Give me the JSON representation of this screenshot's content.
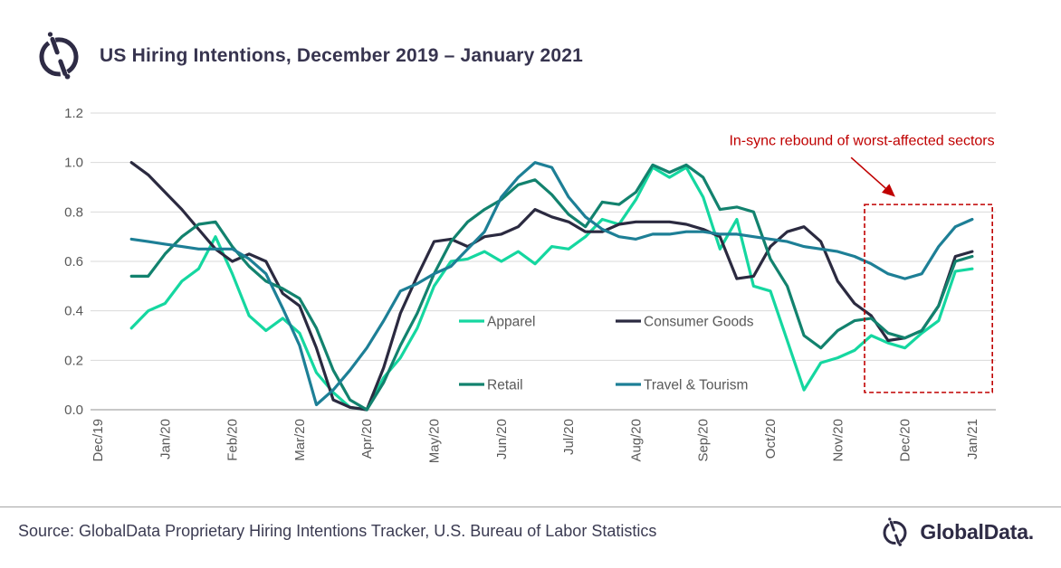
{
  "header": {
    "title": "US Hiring Intentions, December 2019 – January 2021"
  },
  "footer": {
    "source": "Source: GlobalData Proprietary Hiring Intentions Tracker, U.S. Bureau of Labor Statistics",
    "brand": "GlobalData."
  },
  "colors": {
    "title_text": "#37344F",
    "axis_text": "#595959",
    "gridline": "#D9D9D9",
    "axis_line": "#A6A6A6",
    "annotation_red": "#C00000",
    "logo_navy": "#2E2B45",
    "apparel": "#15D7A0",
    "consumer_goods": "#2B2A40",
    "retail": "#12826E",
    "travel_tourism": "#1D7F96"
  },
  "chart_data": {
    "type": "line",
    "title": "US Hiring Intentions, December 2019 – January 2021",
    "xlabel": "",
    "ylabel": "",
    "grid": true,
    "ylim": [
      0,
      1.2
    ],
    "legend_position": "inside lower-center (2 x 2)",
    "x_tick_labels": [
      "Dec/19",
      "Jan/20",
      "Feb/20",
      "Mar/20",
      "Apr/20",
      "May/20",
      "Jun/20",
      "Jul/20",
      "Aug/20",
      "Sep/20",
      "Oct/20",
      "Nov/20",
      "Dec/20",
      "Jan/21"
    ],
    "y_ticks": [
      {
        "label": "0.0",
        "value": 0.0
      },
      {
        "label": "0.2",
        "value": 0.2
      },
      {
        "label": "0.4",
        "value": 0.4
      },
      {
        "label": "0.6",
        "value": 0.6
      },
      {
        "label": "0.8",
        "value": 0.8
      },
      {
        "label": "1.0",
        "value": 1.0
      },
      {
        "label": "1.2",
        "value": 1.2
      }
    ],
    "x_unit": "months after Dec/19 tick (weekly data)",
    "x_start": 0.5,
    "x_step": 0.25,
    "series": [
      {
        "name": "Apparel",
        "color": "#15D7A0",
        "values": [
          0.33,
          0.4,
          0.43,
          0.52,
          0.57,
          0.7,
          0.55,
          0.38,
          0.32,
          0.37,
          0.31,
          0.15,
          0.07,
          0.01,
          0.0,
          0.13,
          0.21,
          0.33,
          0.5,
          0.6,
          0.61,
          0.64,
          0.6,
          0.64,
          0.59,
          0.66,
          0.65,
          0.7,
          0.77,
          0.75,
          0.85,
          0.98,
          0.94,
          0.98,
          0.86,
          0.65,
          0.77,
          0.5,
          0.48,
          0.28,
          0.08,
          0.19,
          0.21,
          0.24,
          0.3,
          0.27,
          0.25,
          0.31,
          0.36,
          0.56,
          0.57
        ]
      },
      {
        "name": "Consumer Goods",
        "color": "#2B2A40",
        "values": [
          1.0,
          0.95,
          0.88,
          0.81,
          0.73,
          0.65,
          0.6,
          0.63,
          0.6,
          0.47,
          0.42,
          0.25,
          0.04,
          0.01,
          0.0,
          0.17,
          0.39,
          0.54,
          0.68,
          0.69,
          0.66,
          0.7,
          0.71,
          0.74,
          0.81,
          0.78,
          0.76,
          0.72,
          0.72,
          0.75,
          0.76,
          0.76,
          0.76,
          0.75,
          0.73,
          0.7,
          0.53,
          0.54,
          0.66,
          0.72,
          0.74,
          0.68,
          0.52,
          0.43,
          0.38,
          0.28,
          0.29,
          0.32,
          0.42,
          0.62,
          0.64
        ]
      },
      {
        "name": "Retail",
        "color": "#12826E",
        "values": [
          0.54,
          0.54,
          0.63,
          0.7,
          0.75,
          0.76,
          0.66,
          0.58,
          0.52,
          0.49,
          0.45,
          0.33,
          0.16,
          0.04,
          0.0,
          0.11,
          0.26,
          0.39,
          0.55,
          0.68,
          0.76,
          0.81,
          0.85,
          0.91,
          0.93,
          0.87,
          0.79,
          0.74,
          0.84,
          0.83,
          0.88,
          0.99,
          0.96,
          0.99,
          0.94,
          0.81,
          0.82,
          0.8,
          0.61,
          0.5,
          0.3,
          0.25,
          0.32,
          0.36,
          0.37,
          0.31,
          0.29,
          0.32,
          0.42,
          0.6,
          0.62
        ]
      },
      {
        "name": "Travel & Tourism",
        "color": "#1D7F96",
        "values": [
          0.69,
          0.68,
          0.67,
          0.66,
          0.65,
          0.65,
          0.65,
          0.61,
          0.55,
          0.41,
          0.26,
          0.02,
          0.08,
          0.16,
          0.25,
          0.36,
          0.48,
          0.51,
          0.55,
          0.58,
          0.65,
          0.72,
          0.86,
          0.94,
          1.0,
          0.98,
          0.86,
          0.78,
          0.73,
          0.7,
          0.69,
          0.71,
          0.71,
          0.72,
          0.72,
          0.71,
          0.71,
          0.7,
          0.69,
          0.68,
          0.66,
          0.65,
          0.64,
          0.62,
          0.59,
          0.55,
          0.53,
          0.55,
          0.66,
          0.74,
          0.77
        ]
      }
    ],
    "annotation": {
      "text": "In-sync rebound of worst-affected sectors",
      "color": "#C00000",
      "text_pos": {
        "month": 11.36,
        "value": 1.07
      },
      "arrow": {
        "from_month": 11.2,
        "from_value": 1.02,
        "to_month": 11.84,
        "to_value": 0.865
      },
      "box_months": [
        11.4,
        13.3
      ],
      "box_values": [
        0.07,
        0.83
      ]
    }
  }
}
